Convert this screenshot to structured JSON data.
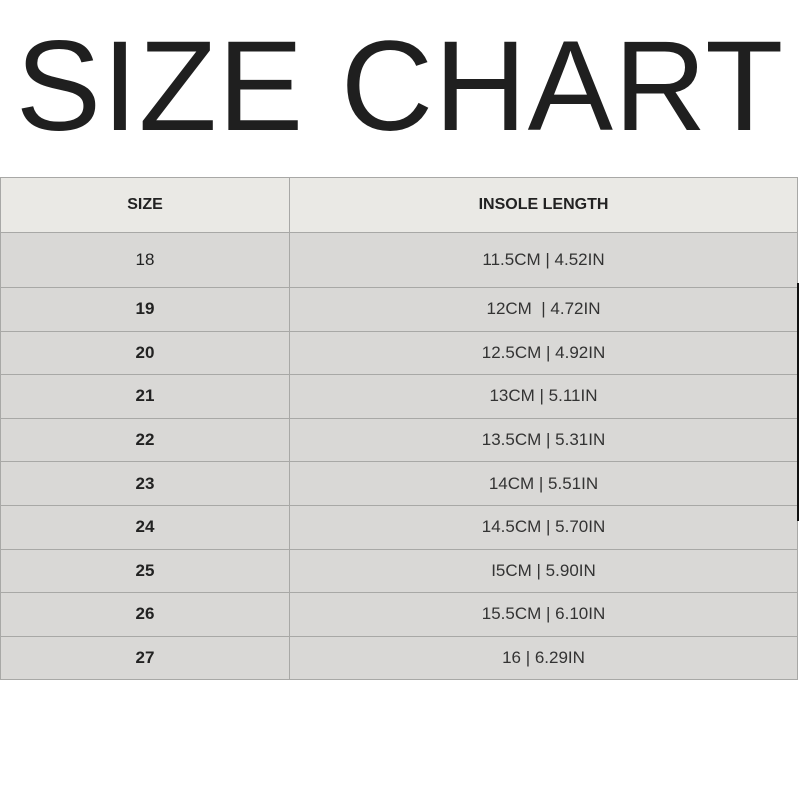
{
  "title": "SIZE CHART",
  "table": {
    "headers": [
      "SIZE",
      "INSOLE LENGTH"
    ],
    "rows": [
      {
        "size": "18",
        "length": "11.5CM | 4.52IN"
      },
      {
        "size": "19",
        "length": "12CM  | 4.72IN"
      },
      {
        "size": "20",
        "length": "12.5CM | 4.92IN"
      },
      {
        "size": "21",
        "length": "13CM | 5.11IN"
      },
      {
        "size": "22",
        "length": "13.5CM | 5.31IN"
      },
      {
        "size": "23",
        "length": "14CM | 5.51IN"
      },
      {
        "size": "24",
        "length": "14.5CM | 5.70IN"
      },
      {
        "size": "25",
        "length": "I5CM | 5.90IN"
      },
      {
        "size": "26",
        "length": "15.5CM | 6.10IN"
      },
      {
        "size": "27",
        "length": "16 | 6.29IN"
      }
    ]
  },
  "colors": {
    "header_bg": "#eae9e5",
    "row_bg": "#d9d8d6",
    "border": "#a8a8a6"
  }
}
